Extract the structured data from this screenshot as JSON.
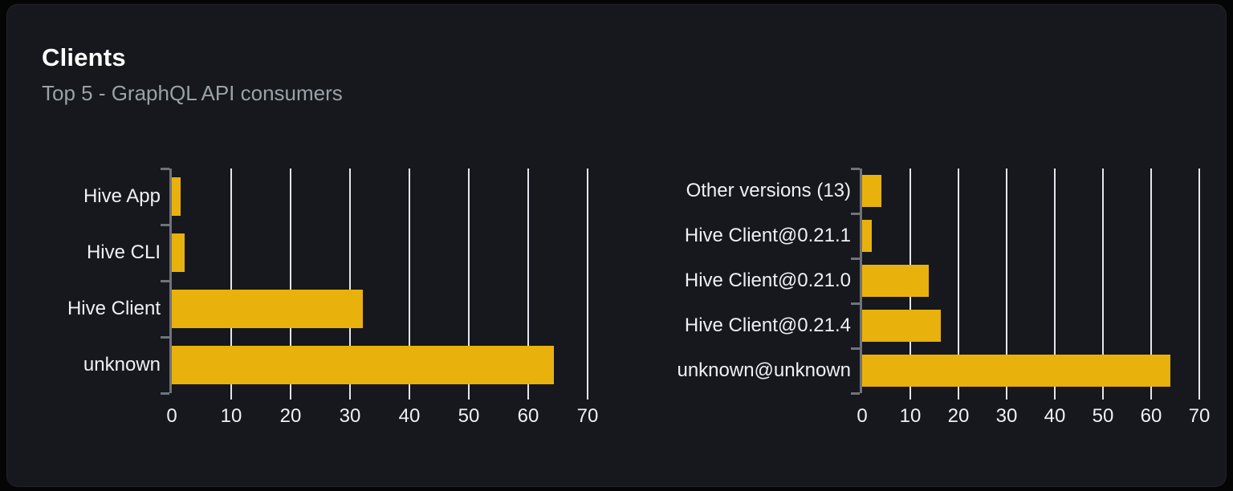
{
  "header": {
    "title": "Clients",
    "subtitle": "Top 5 - GraphQL API consumers"
  },
  "colors": {
    "bar": "#e8b10c",
    "card_background": "#16181d",
    "outer_background": "#050506",
    "gridline": "#e4e6ee",
    "axis": "#6f737b",
    "label_text": "#eef0f3",
    "subtitle_text": "#9aa1a8"
  },
  "chart_data": [
    {
      "type": "bar",
      "orientation": "horizontal",
      "title": "",
      "categories": [
        "Hive App",
        "Hive CLI",
        "Hive Client",
        "unknown"
      ],
      "values": [
        1.5,
        2.1,
        32.1,
        64.3
      ],
      "xlabel": "",
      "ylabel": "",
      "xticks": [
        0,
        10,
        20,
        30,
        40,
        50,
        60,
        70
      ],
      "xlim": [
        0,
        71.6
      ],
      "grid": true,
      "legend": false
    },
    {
      "type": "bar",
      "orientation": "horizontal",
      "title": "",
      "categories": [
        "Other versions (13)",
        "Hive Client@0.21.1",
        "Hive Client@0.21.0",
        "Hive Client@0.21.4",
        "unknown@unknown"
      ],
      "values": [
        4.0,
        2.0,
        13.8,
        16.4,
        64.0
      ],
      "xlabel": "",
      "ylabel": "",
      "xticks": [
        0,
        10,
        20,
        30,
        40,
        50,
        60,
        70
      ],
      "xlim": [
        0,
        72
      ],
      "grid": true,
      "legend": false
    }
  ]
}
